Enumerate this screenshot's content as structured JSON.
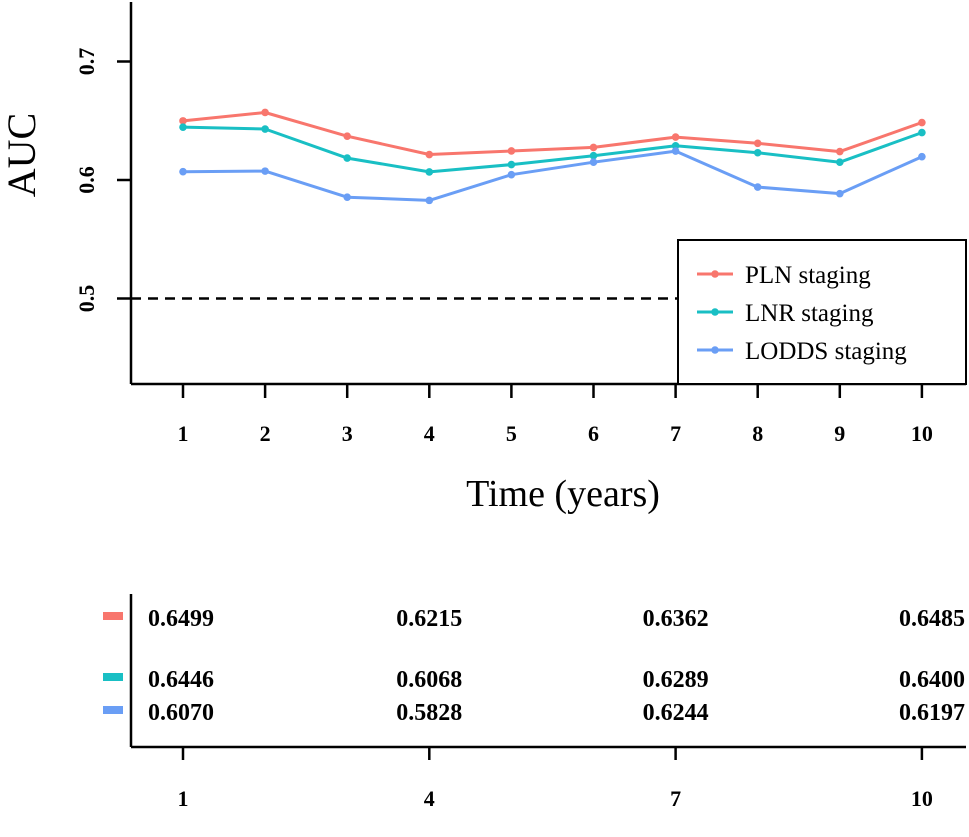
{
  "chart_data": [
    {
      "type": "line",
      "xlabel": "Time (years)",
      "ylabel": "AUC",
      "x": [
        1,
        2,
        3,
        4,
        5,
        6,
        7,
        8,
        9,
        10
      ],
      "x_tick_labels": [
        "1",
        "2",
        "3",
        "4",
        "5",
        "6",
        "7",
        "8",
        "9",
        "10"
      ],
      "y_ticks": [
        0.5,
        0.6,
        0.7
      ],
      "y_tick_labels": [
        "0.5",
        "0.6",
        "0.7"
      ],
      "ylim": [
        0.428,
        0.75
      ],
      "reference_line": {
        "y": 0.5,
        "style": "dashed"
      },
      "legend_position": "bottom-right",
      "series": [
        {
          "name": "PLN staging",
          "color": "#F8766D",
          "values": [
            0.6499,
            0.657,
            0.637,
            0.6215,
            0.6245,
            0.6275,
            0.6362,
            0.631,
            0.624,
            0.6485
          ]
        },
        {
          "name": "LNR staging",
          "color": "#19BFC4",
          "values": [
            0.6446,
            0.643,
            0.6185,
            0.6068,
            0.613,
            0.6205,
            0.6289,
            0.623,
            0.615,
            0.64
          ]
        },
        {
          "name": "LODDS staging",
          "color": "#6A9EF5",
          "values": [
            0.607,
            0.6075,
            0.5855,
            0.5828,
            0.6045,
            0.615,
            0.6244,
            0.594,
            0.5885,
            0.6197
          ]
        }
      ]
    },
    {
      "type": "table",
      "x_tick_labels": [
        "1",
        "4",
        "7",
        "10"
      ],
      "rows": [
        {
          "series": "PLN staging",
          "color": "#F8766D",
          "values": [
            "0.6499",
            "0.6215",
            "0.6362",
            "0.6485"
          ]
        },
        {
          "series": "LNR staging",
          "color": "#19BFC4",
          "values": [
            "0.6446",
            "0.6068",
            "0.6289",
            "0.6400"
          ]
        },
        {
          "series": "LODDS staging",
          "color": "#6A9EF5",
          "values": [
            "0.6070",
            "0.5828",
            "0.6244",
            "0.6197"
          ]
        }
      ]
    }
  ]
}
